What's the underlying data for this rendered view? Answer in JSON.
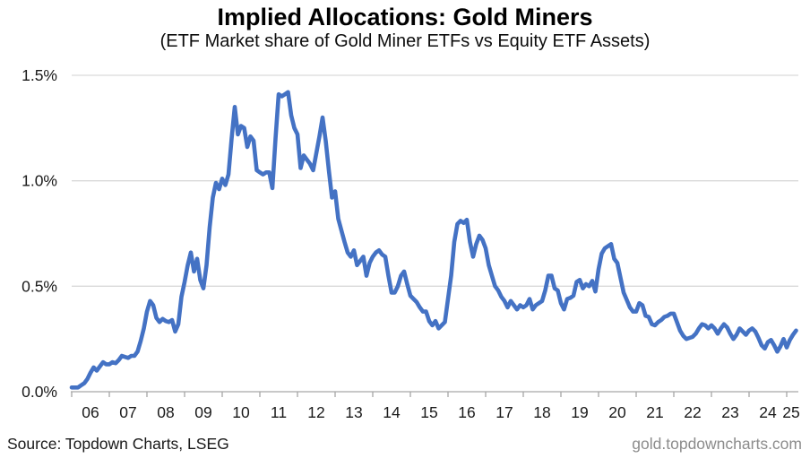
{
  "title": "Implied Allocations: Gold Miners",
  "subtitle": "(ETF Market share of Gold Miner ETFs vs Equity ETF Assets)",
  "footer": {
    "source": "Source: Topdown Charts, LSEG",
    "website": "gold.topdowncharts.com"
  },
  "colors": {
    "line": "#4472C4",
    "gridline": "#D9D9D9",
    "axis": "#A6A6A6",
    "tick_label": "#1a1a1a",
    "website_text": "#8c8c8c"
  },
  "chart_data": {
    "type": "line",
    "title": "Implied Allocations: Gold Miners",
    "subtitle": "(ETF Market share of Gold Miner ETFs vs Equity ETF Assets)",
    "xlabel": "",
    "ylabel": "",
    "ylim": [
      0,
      1.5
    ],
    "grid": "horizontal",
    "legend": "none",
    "x_start_year": 2006,
    "frequency": "monthly",
    "x_tick_labels": [
      "06",
      "07",
      "08",
      "09",
      "10",
      "11",
      "12",
      "13",
      "14",
      "15",
      "16",
      "17",
      "18",
      "19",
      "20",
      "21",
      "22",
      "23",
      "24",
      "25"
    ],
    "y_ticks": [
      {
        "label": "0.0%",
        "value": 0.0
      },
      {
        "label": "0.5%",
        "value": 0.5
      },
      {
        "label": "1.0%",
        "value": 1.0
      },
      {
        "label": "1.5%",
        "value": 1.5
      }
    ],
    "series": [
      {
        "name": "ETF market share of Gold Miner ETFs vs Equity ETF assets",
        "unit": "%",
        "monthly_values": [
          0.02,
          0.02,
          0.02,
          0.03,
          0.04,
          0.06,
          0.09,
          0.115,
          0.1,
          0.12,
          0.14,
          0.13,
          0.13,
          0.14,
          0.135,
          0.15,
          0.17,
          0.165,
          0.16,
          0.17,
          0.17,
          0.19,
          0.24,
          0.3,
          0.38,
          0.43,
          0.41,
          0.35,
          0.33,
          0.345,
          0.335,
          0.33,
          0.34,
          0.285,
          0.32,
          0.45,
          0.52,
          0.6,
          0.66,
          0.57,
          0.63,
          0.53,
          0.49,
          0.6,
          0.78,
          0.92,
          0.99,
          0.96,
          1.01,
          0.98,
          1.03,
          1.2,
          1.35,
          1.22,
          1.26,
          1.25,
          1.16,
          1.21,
          1.19,
          1.05,
          1.04,
          1.03,
          1.04,
          1.04,
          0.965,
          1.2,
          1.41,
          1.4,
          1.41,
          1.42,
          1.31,
          1.25,
          1.22,
          1.06,
          1.12,
          1.1,
          1.08,
          1.05,
          1.13,
          1.21,
          1.3,
          1.19,
          1.05,
          0.92,
          0.95,
          0.82,
          0.765,
          0.71,
          0.66,
          0.64,
          0.67,
          0.6,
          0.62,
          0.64,
          0.55,
          0.61,
          0.64,
          0.66,
          0.67,
          0.65,
          0.64,
          0.55,
          0.47,
          0.47,
          0.5,
          0.55,
          0.57,
          0.51,
          0.455,
          0.44,
          0.425,
          0.4,
          0.38,
          0.38,
          0.335,
          0.315,
          0.335,
          0.3,
          0.315,
          0.33,
          0.44,
          0.55,
          0.71,
          0.795,
          0.81,
          0.8,
          0.815,
          0.71,
          0.64,
          0.7,
          0.74,
          0.72,
          0.68,
          0.6,
          0.55,
          0.5,
          0.48,
          0.45,
          0.43,
          0.4,
          0.43,
          0.41,
          0.39,
          0.41,
          0.4,
          0.41,
          0.44,
          0.39,
          0.41,
          0.42,
          0.43,
          0.48,
          0.55,
          0.55,
          0.49,
          0.48,
          0.42,
          0.39,
          0.44,
          0.445,
          0.455,
          0.52,
          0.53,
          0.49,
          0.51,
          0.5,
          0.525,
          0.475,
          0.58,
          0.655,
          0.68,
          0.69,
          0.7,
          0.63,
          0.61,
          0.54,
          0.47,
          0.435,
          0.4,
          0.38,
          0.38,
          0.42,
          0.41,
          0.36,
          0.355,
          0.32,
          0.315,
          0.33,
          0.34,
          0.355,
          0.36,
          0.37,
          0.37,
          0.33,
          0.29,
          0.265,
          0.25,
          0.255,
          0.26,
          0.275,
          0.3,
          0.32,
          0.315,
          0.3,
          0.315,
          0.3,
          0.275,
          0.3,
          0.32,
          0.305,
          0.275,
          0.25,
          0.27,
          0.3,
          0.285,
          0.27,
          0.29,
          0.3,
          0.285,
          0.255,
          0.22,
          0.205,
          0.235,
          0.245,
          0.22,
          0.19,
          0.215,
          0.25,
          0.21,
          0.245,
          0.27,
          0.29
        ]
      }
    ]
  }
}
